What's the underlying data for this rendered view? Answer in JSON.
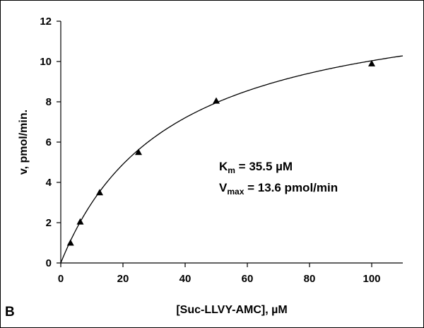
{
  "chart_data": {
    "type": "scatter",
    "panel_label": "B",
    "xlabel": "[Suc-LLVY-AMC], µM",
    "ylabel": "v, pmol/min.",
    "xlim": [
      0,
      110
    ],
    "ylim": [
      0,
      12
    ],
    "x_ticks": [
      0,
      20,
      40,
      60,
      80,
      100
    ],
    "y_ticks": [
      0,
      2,
      4,
      6,
      8,
      10,
      12
    ],
    "grid": false,
    "series": [
      {
        "marker": "triangle",
        "color": "#000000",
        "x": [
          3.125,
          6.25,
          12.5,
          25,
          50,
          100
        ],
        "y": [
          1.0,
          2.05,
          3.5,
          5.5,
          8.05,
          9.9
        ]
      }
    ],
    "fit": {
      "model": "michaelis-menten",
      "km": 35.5,
      "vmax": 13.6,
      "color": "#000000"
    },
    "annotations": {
      "km": {
        "symbol": "K",
        "sub": "m",
        "text": " = 35.5 µM"
      },
      "vmax": {
        "symbol": "V",
        "sub": "max",
        "text": " = 13.6 pmol/min"
      }
    }
  }
}
